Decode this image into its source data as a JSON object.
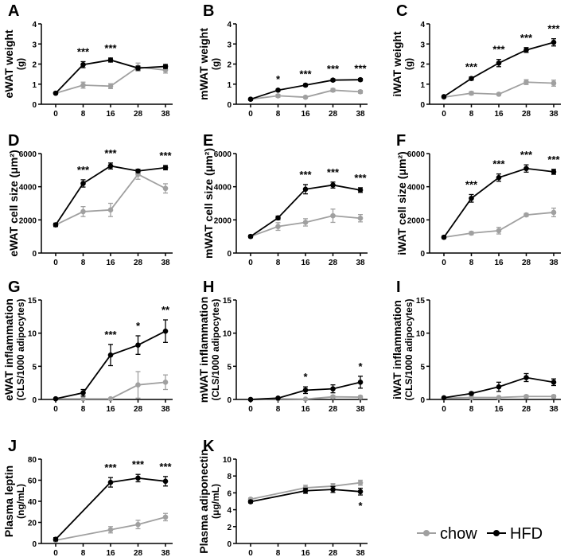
{
  "colors": {
    "chow": "#a0a0a0",
    "HFD": "#000000"
  },
  "legend": {
    "chow": "chow",
    "HFD": "HFD"
  },
  "chart_data": [
    {
      "type": "line",
      "panel": "A",
      "ylabel": "eWAT weight",
      "ylabel2": "(g)",
      "ylim": [
        0,
        4
      ],
      "yticks": [
        0,
        1,
        2,
        3,
        4
      ],
      "categories": [
        "0",
        "8",
        "16",
        "28",
        "38"
      ],
      "series": [
        {
          "name": "chow",
          "values": [
            0.55,
            0.95,
            0.9,
            1.85,
            1.7
          ],
          "err": [
            0.05,
            0.15,
            0.12,
            0.2,
            0.15
          ]
        },
        {
          "name": "HFD",
          "values": [
            0.55,
            1.97,
            2.2,
            1.8,
            1.88
          ],
          "err": [
            0.05,
            0.15,
            0.1,
            0.1,
            0.1
          ]
        }
      ],
      "significance": [
        "",
        "***",
        "***",
        "",
        ""
      ]
    },
    {
      "type": "line",
      "panel": "B",
      "ylabel": "mWAT weight",
      "ylabel2": "(g)",
      "ylim": [
        0,
        4
      ],
      "yticks": [
        0,
        1,
        2,
        3,
        4
      ],
      "categories": [
        "0",
        "8",
        "16",
        "28",
        "38"
      ],
      "series": [
        {
          "name": "chow",
          "values": [
            0.25,
            0.42,
            0.35,
            0.7,
            0.62
          ],
          "err": [
            0.05,
            0.07,
            0.05,
            0.08,
            0.07
          ]
        },
        {
          "name": "HFD",
          "values": [
            0.25,
            0.7,
            0.95,
            1.2,
            1.22
          ],
          "err": [
            0.05,
            0.05,
            0.06,
            0.06,
            0.06
          ]
        }
      ],
      "significance": [
        "",
        "*",
        "***",
        "***",
        "***"
      ]
    },
    {
      "type": "line",
      "panel": "C",
      "ylabel": "iWAT weight",
      "ylabel2": "(g)",
      "ylim": [
        0,
        4
      ],
      "yticks": [
        0,
        1,
        2,
        3,
        4
      ],
      "categories": [
        "0",
        "8",
        "16",
        "28",
        "38"
      ],
      "series": [
        {
          "name": "chow",
          "values": [
            0.35,
            0.55,
            0.5,
            1.1,
            1.05
          ],
          "err": [
            0.05,
            0.08,
            0.05,
            0.12,
            0.15
          ]
        },
        {
          "name": "HFD",
          "values": [
            0.38,
            1.28,
            2.05,
            2.7,
            3.08
          ],
          "err": [
            0.05,
            0.08,
            0.18,
            0.12,
            0.18
          ]
        }
      ],
      "significance": [
        "",
        "***",
        "***",
        "***",
        "***"
      ]
    },
    {
      "type": "line",
      "panel": "D",
      "ylabel": "eWAT cell size (μm²)",
      "ylabel2": "",
      "ylim": [
        0,
        6000
      ],
      "yticks": [
        0,
        2000,
        4000,
        6000
      ],
      "categories": [
        "0",
        "8",
        "16",
        "28",
        "38"
      ],
      "series": [
        {
          "name": "chow",
          "values": [
            1700,
            2500,
            2600,
            4750,
            3900
          ],
          "err": [
            100,
            300,
            400,
            300,
            280
          ]
        },
        {
          "name": "HFD",
          "values": [
            1700,
            4200,
            5250,
            4950,
            5150
          ],
          "err": [
            100,
            220,
            180,
            100,
            130
          ]
        }
      ],
      "significance": [
        "",
        "***",
        "***",
        "",
        "***"
      ]
    },
    {
      "type": "line",
      "panel": "E",
      "ylabel": "mWAT cell size (μm²)",
      "ylabel2": "",
      "ylim": [
        0,
        6000
      ],
      "yticks": [
        0,
        2000,
        4000,
        6000
      ],
      "categories": [
        "0",
        "8",
        "16",
        "28",
        "38"
      ],
      "series": [
        {
          "name": "chow",
          "values": [
            1000,
            1600,
            1850,
            2250,
            2100
          ],
          "err": [
            80,
            230,
            220,
            400,
            220
          ]
        },
        {
          "name": "HFD",
          "values": [
            1000,
            2120,
            3850,
            4100,
            3800
          ],
          "err": [
            80,
            110,
            280,
            180,
            140
          ]
        }
      ],
      "significance": [
        "",
        "",
        "***",
        "***",
        "***"
      ]
    },
    {
      "type": "line",
      "panel": "F",
      "ylabel": "iWAT cell size (μm²)",
      "ylabel2": "",
      "ylim": [
        0,
        6000
      ],
      "yticks": [
        0,
        2000,
        4000,
        6000
      ],
      "categories": [
        "0",
        "8",
        "16",
        "28",
        "38"
      ],
      "series": [
        {
          "name": "chow",
          "values": [
            950,
            1200,
            1350,
            2300,
            2450
          ],
          "err": [
            80,
            90,
            200,
            90,
            260
          ]
        },
        {
          "name": "HFD",
          "values": [
            950,
            3300,
            4550,
            5100,
            4900
          ],
          "err": [
            80,
            230,
            220,
            220,
            150
          ]
        }
      ],
      "significance": [
        "",
        "***",
        "***",
        "***",
        "***"
      ]
    },
    {
      "type": "line",
      "panel": "G",
      "ylabel": "eWAT inflammation",
      "ylabel2": "(CLS/1000 adipocytes)",
      "ylim": [
        0,
        15
      ],
      "yticks": [
        0,
        5,
        10,
        15
      ],
      "categories": [
        "0",
        "8",
        "16",
        "28",
        "38"
      ],
      "series": [
        {
          "name": "chow",
          "values": [
            0.1,
            0.1,
            0.1,
            2.2,
            2.6
          ],
          "err": [
            0.1,
            0.1,
            0.1,
            2.0,
            1.1
          ]
        },
        {
          "name": "HFD",
          "values": [
            0.1,
            1.0,
            6.7,
            8.2,
            10.3
          ],
          "err": [
            0.1,
            0.5,
            1.6,
            1.4,
            1.7
          ]
        }
      ],
      "significance": [
        "",
        "",
        "***",
        "*",
        "**"
      ]
    },
    {
      "type": "line",
      "panel": "H",
      "ylabel": "mWAT inflammation",
      "ylabel2": "(CLS/1000 adipocytes)",
      "ylim": [
        0,
        15
      ],
      "yticks": [
        0,
        5,
        10,
        15
      ],
      "categories": [
        "0",
        "8",
        "16",
        "28",
        "38"
      ],
      "series": [
        {
          "name": "chow",
          "values": [
            0,
            0.1,
            0.05,
            0.4,
            0.35
          ],
          "err": [
            0.05,
            0.1,
            0.05,
            0.2,
            0.2
          ]
        },
        {
          "name": "HFD",
          "values": [
            0,
            0.2,
            1.4,
            1.6,
            2.6
          ],
          "err": [
            0.05,
            0.1,
            0.5,
            0.6,
            0.9
          ]
        }
      ],
      "significance": [
        "",
        "",
        "*",
        "",
        "*"
      ]
    },
    {
      "type": "line",
      "panel": "I",
      "ylabel": "iWAT inflammation",
      "ylabel2": "(CLS/1000 adipocytes)",
      "ylim": [
        0,
        15
      ],
      "yticks": [
        0,
        5,
        10,
        15
      ],
      "categories": [
        "0",
        "8",
        "16",
        "28",
        "38"
      ],
      "series": [
        {
          "name": "chow",
          "values": [
            0.2,
            0.3,
            0.3,
            0.45,
            0.45
          ],
          "err": [
            0.1,
            0.1,
            0.1,
            0.2,
            0.2
          ]
        },
        {
          "name": "HFD",
          "values": [
            0.25,
            0.9,
            1.9,
            3.3,
            2.6
          ],
          "err": [
            0.1,
            0.2,
            0.7,
            0.6,
            0.5
          ]
        }
      ],
      "significance": [
        "",
        "",
        "",
        "",
        ""
      ]
    },
    {
      "type": "line",
      "panel": "J",
      "ylabel": "Plasma leptin",
      "ylabel2": "(ng/mL)",
      "ylim": [
        0,
        80
      ],
      "yticks": [
        0,
        20,
        40,
        60,
        80
      ],
      "categories": [
        "0",
        "8",
        "16",
        "28",
        "38"
      ],
      "series": [
        {
          "name": "chow",
          "values": [
            3,
            null,
            13,
            18,
            25
          ],
          "err": [
            1,
            null,
            3,
            4,
            3.5
          ]
        },
        {
          "name": "HFD",
          "values": [
            4,
            null,
            58,
            62,
            59
          ],
          "err": [
            1.5,
            null,
            4.5,
            3.5,
            4.5
          ]
        }
      ],
      "significance": [
        "",
        "",
        "***",
        "***",
        "***"
      ]
    },
    {
      "type": "line",
      "panel": "K",
      "ylabel": "Plasma adiponectin",
      "ylabel2": "(μg/mL)",
      "ylim": [
        0,
        10
      ],
      "yticks": [
        0,
        2,
        4,
        6,
        8,
        10
      ],
      "categories": [
        "0",
        "8",
        "16",
        "28",
        "38"
      ],
      "series": [
        {
          "name": "chow",
          "values": [
            5.25,
            null,
            6.6,
            6.8,
            7.2
          ],
          "err": [
            0.15,
            null,
            0.3,
            0.3,
            0.3
          ]
        },
        {
          "name": "HFD",
          "values": [
            4.95,
            null,
            6.25,
            6.4,
            6.15
          ],
          "err": [
            0.15,
            null,
            0.3,
            0.35,
            0.4
          ]
        }
      ],
      "significance": [
        "",
        "",
        "",
        "",
        "*"
      ],
      "significance_position": "below"
    }
  ]
}
